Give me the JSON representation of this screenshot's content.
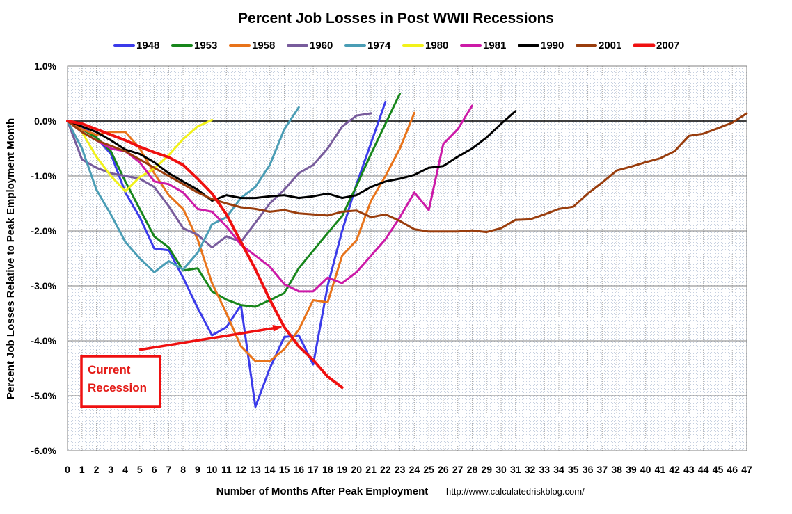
{
  "chart_data": {
    "type": "line",
    "title": "Percent Job Losses in Post WWII Recessions",
    "xlabel": "Number of Months After Peak Employment",
    "ylabel": "Percent Job Losses Relative to Peak Employment Month",
    "source": "http://www.calculatedriskblog.com/",
    "xlim": [
      0,
      47
    ],
    "ylim": [
      -6.0,
      1.0
    ],
    "x_ticks": [
      0,
      1,
      2,
      3,
      4,
      5,
      6,
      7,
      8,
      9,
      10,
      11,
      12,
      13,
      14,
      15,
      16,
      17,
      18,
      19,
      20,
      21,
      22,
      23,
      24,
      25,
      26,
      27,
      28,
      29,
      30,
      31,
      32,
      33,
      34,
      35,
      36,
      37,
      38,
      39,
      40,
      41,
      42,
      43,
      44,
      45,
      46,
      47
    ],
    "y_ticks": [
      1.0,
      0.0,
      -1.0,
      -2.0,
      -3.0,
      -4.0,
      -5.0,
      -6.0
    ],
    "y_tick_labels": [
      "1.0%",
      "0.0%",
      "-1.0%",
      "-2.0%",
      "-3.0%",
      "-4.0%",
      "-5.0%",
      "-6.0%"
    ],
    "grid": true,
    "legend_position": "top",
    "series": [
      {
        "name": "1948",
        "color": "#3b3bea",
        "values": [
          0,
          -0.1,
          -0.3,
          -0.6,
          -1.3,
          -1.75,
          -2.32,
          -2.35,
          -2.85,
          -3.4,
          -3.9,
          -3.75,
          -3.35,
          -5.2,
          -4.5,
          -3.93,
          -3.9,
          -4.43,
          -3.0,
          -2.0,
          -1.15,
          -0.4,
          0.35
        ]
      },
      {
        "name": "1953",
        "color": "#17861b",
        "values": [
          0,
          -0.15,
          -0.3,
          -0.55,
          -1.1,
          -1.6,
          -2.1,
          -2.3,
          -2.72,
          -2.68,
          -3.1,
          -3.25,
          -3.35,
          -3.38,
          -3.26,
          -3.13,
          -2.68,
          -2.36,
          -2.04,
          -1.73,
          -1.18,
          -0.6,
          -0.05,
          0.5
        ]
      },
      {
        "name": "1958",
        "color": "#e8731a",
        "values": [
          0,
          -0.15,
          -0.25,
          -0.2,
          -0.2,
          -0.5,
          -0.95,
          -1.35,
          -1.6,
          -2.15,
          -2.95,
          -3.5,
          -4.1,
          -4.37,
          -4.37,
          -4.15,
          -3.8,
          -3.26,
          -3.3,
          -2.45,
          -2.17,
          -1.45,
          -1.0,
          -0.5,
          0.15
        ]
      },
      {
        "name": "1960",
        "color": "#785c9c",
        "values": [
          0,
          -0.7,
          -0.85,
          -0.95,
          -1.0,
          -1.05,
          -1.2,
          -1.55,
          -1.95,
          -2.07,
          -2.3,
          -2.1,
          -2.2,
          -1.85,
          -1.5,
          -1.25,
          -0.95,
          -0.8,
          -0.5,
          -0.1,
          0.1,
          0.14
        ]
      },
      {
        "name": "1974",
        "color": "#4a9db5",
        "values": [
          0,
          -0.5,
          -1.25,
          -1.7,
          -2.2,
          -2.5,
          -2.75,
          -2.55,
          -2.7,
          -2.4,
          -1.88,
          -1.75,
          -1.4,
          -1.2,
          -0.8,
          -0.15,
          0.25
        ]
      },
      {
        "name": "1980",
        "color": "#f2f21a",
        "values": [
          0,
          -0.2,
          -0.65,
          -1.0,
          -1.28,
          -1.02,
          -0.87,
          -0.62,
          -0.33,
          -0.1,
          0.02
        ]
      },
      {
        "name": "1981",
        "color": "#cc1aa7",
        "values": [
          0,
          -0.2,
          -0.35,
          -0.5,
          -0.55,
          -0.75,
          -1.1,
          -1.15,
          -1.3,
          -1.6,
          -1.65,
          -1.92,
          -2.25,
          -2.45,
          -2.65,
          -2.97,
          -3.1,
          -3.1,
          -2.85,
          -2.95,
          -2.75,
          -2.45,
          -2.15,
          -1.75,
          -1.3,
          -1.62,
          -0.42,
          -0.15,
          0.28
        ]
      },
      {
        "name": "1990",
        "color": "#000000",
        "values": [
          0,
          -0.1,
          -0.2,
          -0.35,
          -0.52,
          -0.6,
          -0.75,
          -0.95,
          -1.1,
          -1.25,
          -1.45,
          -1.35,
          -1.4,
          -1.4,
          -1.37,
          -1.35,
          -1.4,
          -1.37,
          -1.32,
          -1.4,
          -1.35,
          -1.2,
          -1.1,
          -1.05,
          -0.98,
          -0.85,
          -0.82,
          -0.65,
          -0.5,
          -0.3,
          -0.05,
          0.18
        ]
      },
      {
        "name": "2001",
        "color": "#993d0d",
        "values": [
          0,
          -0.2,
          -0.35,
          -0.45,
          -0.55,
          -0.7,
          -0.85,
          -1.0,
          -1.15,
          -1.3,
          -1.42,
          -1.5,
          -1.57,
          -1.6,
          -1.65,
          -1.62,
          -1.68,
          -1.7,
          -1.72,
          -1.65,
          -1.63,
          -1.75,
          -1.7,
          -1.82,
          -1.97,
          -2.01,
          -2.01,
          -2.01,
          -1.99,
          -2.02,
          -1.95,
          -1.8,
          -1.79,
          -1.7,
          -1.6,
          -1.56,
          -1.32,
          -1.12,
          -0.9,
          -0.83,
          -0.75,
          -0.68,
          -0.55,
          -0.27,
          -0.23,
          -0.13,
          -0.03,
          0.14
        ]
      },
      {
        "name": "2007",
        "color": "#ef1010",
        "values": [
          0,
          -0.05,
          -0.15,
          -0.25,
          -0.35,
          -0.47,
          -0.57,
          -0.66,
          -0.8,
          -1.05,
          -1.32,
          -1.7,
          -2.2,
          -2.7,
          -3.25,
          -3.75,
          -4.1,
          -4.35,
          -4.65,
          -4.85
        ]
      }
    ],
    "annotation": {
      "text_line1": "Current",
      "text_line2": "Recession"
    }
  }
}
